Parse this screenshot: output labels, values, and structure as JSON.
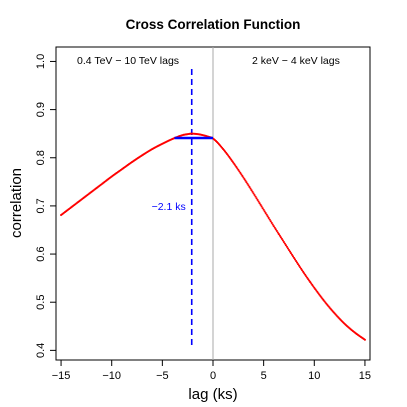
{
  "chart_data": {
    "type": "scatter",
    "title": "Cross Correlation Function",
    "xlabel": "lag (ks)",
    "ylabel": "correlation",
    "xlim": [
      -15.5,
      15.5
    ],
    "ylim": [
      0.38,
      1.03
    ],
    "xticks": [
      -15,
      -10,
      -5,
      0,
      5,
      10,
      15
    ],
    "yticks": [
      0.4,
      0.5,
      0.6,
      0.7,
      0.8,
      0.9,
      1.0
    ],
    "grid": false,
    "annotations": {
      "left_label": "0.4 TeV − 10 TeV  lags",
      "right_label": "2 keV − 4 keV  lags",
      "peak_label": "−2.1 ks"
    },
    "peak_lag": -2.1,
    "peak_correlation": 0.85,
    "zero_line_x": 0,
    "hline": {
      "y": 0.841,
      "x_from": -3.8,
      "x_to": 0.0
    },
    "series": [
      {
        "color": "#ff0000",
        "x": [
          -15,
          -14,
          -13,
          -12,
          -11,
          -10,
          -9,
          -8,
          -7,
          -6,
          -5,
          -4,
          -3,
          -2.5,
          -2.1,
          -1.5,
          -1,
          -0.5,
          0,
          1,
          2,
          3,
          4,
          5,
          6,
          7,
          8,
          9,
          10,
          11,
          12,
          13,
          14,
          15
        ],
        "y": [
          0.681,
          0.697,
          0.713,
          0.729,
          0.745,
          0.761,
          0.776,
          0.791,
          0.805,
          0.818,
          0.829,
          0.839,
          0.847,
          0.849,
          0.85,
          0.849,
          0.847,
          0.844,
          0.84,
          0.818,
          0.79,
          0.759,
          0.726,
          0.692,
          0.658,
          0.625,
          0.592,
          0.56,
          0.53,
          0.502,
          0.477,
          0.455,
          0.437,
          0.422
        ]
      }
    ]
  }
}
